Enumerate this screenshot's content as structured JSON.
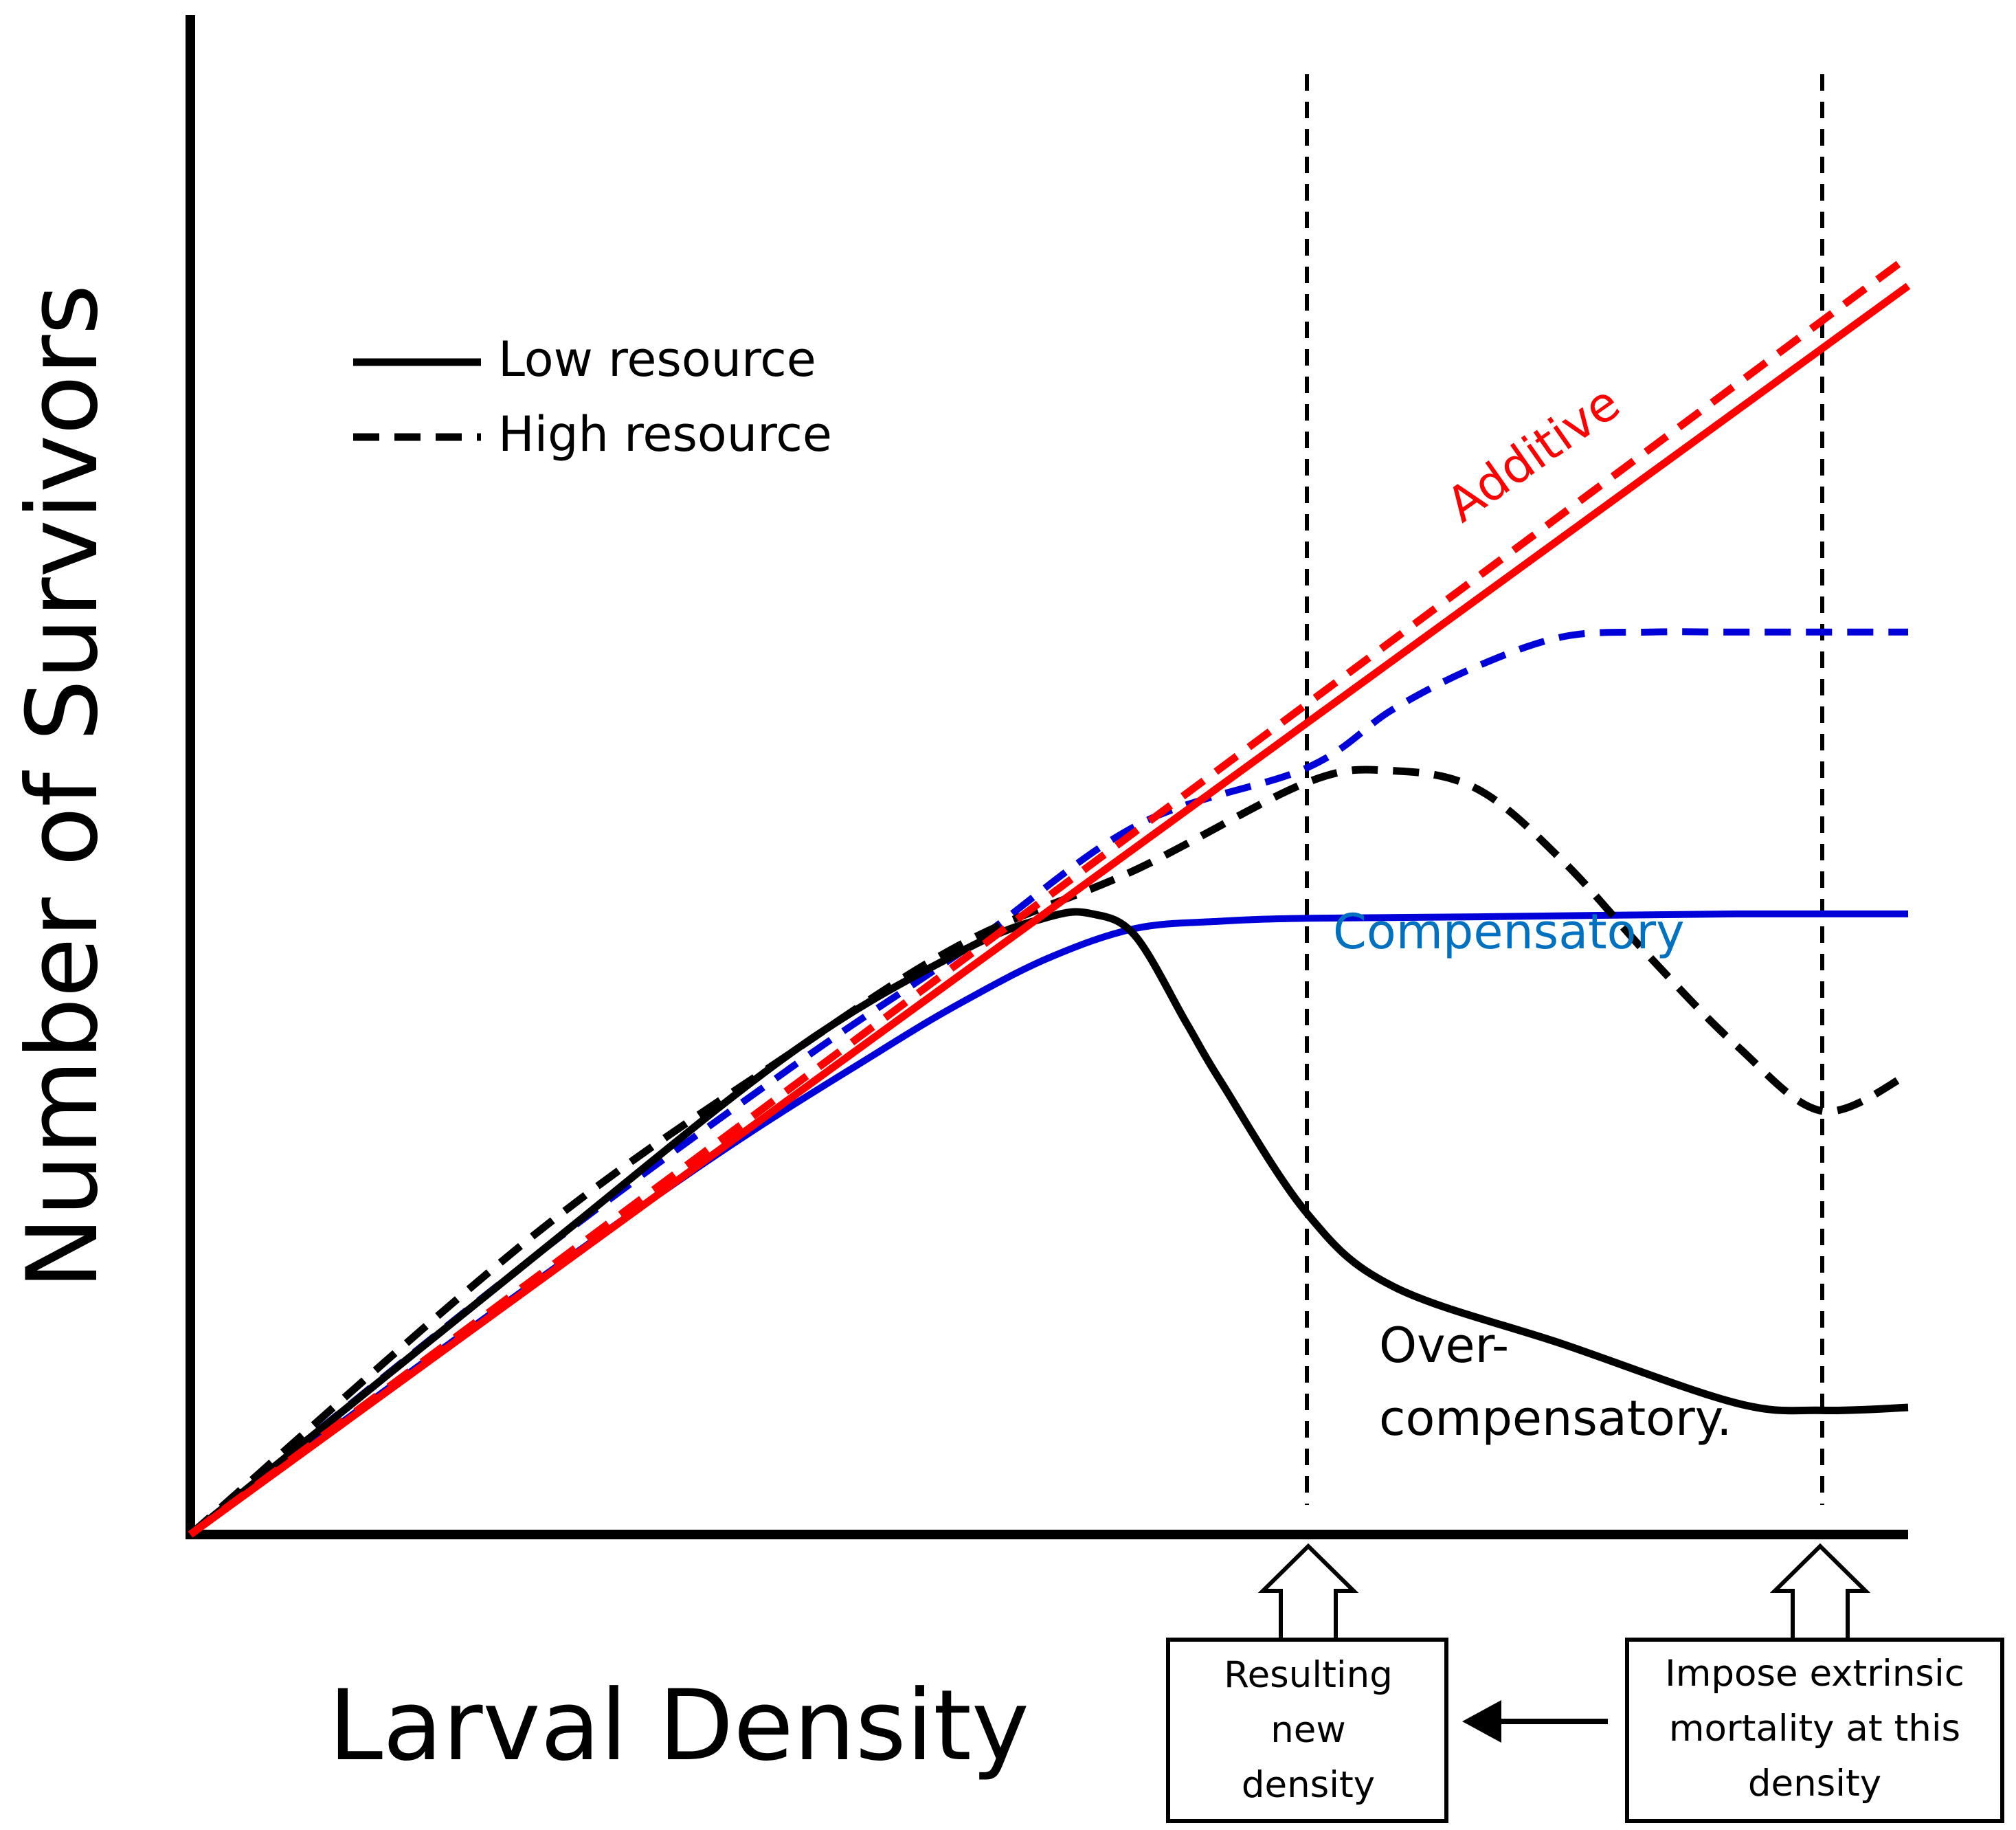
{
  "chart_data": {
    "type": "line",
    "title": "",
    "xlabel": "Larval Density",
    "ylabel": "Number of Survivors",
    "xlim": [
      0,
      100
    ],
    "ylim": [
      0,
      100
    ],
    "ticks": "none",
    "grid": false,
    "legend": {
      "placement": "top-left",
      "entries": [
        {
          "label": "Low resource",
          "style": "solid"
        },
        {
          "label": "High resource",
          "style": "dashed"
        }
      ]
    },
    "colors": {
      "additive": "#ff0000",
      "compensatory_line": "#0000d8",
      "compensatory_text": "#0070c0",
      "overcompensatory": "#000000",
      "reference": "#000000"
    },
    "series": [
      {
        "name": "Additive (Low resource)",
        "key": "additive_low",
        "color": "#ff0000",
        "style": "solid",
        "x": [
          0,
          100
        ],
        "y": [
          0,
          85.5
        ]
      },
      {
        "name": "Additive (High resource)",
        "key": "additive_high",
        "color": "#ff0000",
        "style": "dashed",
        "x": [
          0,
          100
        ],
        "y": [
          0,
          87.5
        ]
      },
      {
        "name": "Compensatory (Low resource)",
        "key": "comp_low",
        "color": "#0000d8",
        "style": "solid",
        "x": [
          0,
          15,
          30,
          40,
          45,
          50,
          55,
          60,
          65,
          75,
          90,
          100
        ],
        "y": [
          0,
          13,
          25.5,
          33,
          36.5,
          39.5,
          41.5,
          42,
          42.2,
          42.3,
          42.5,
          42.5
        ]
      },
      {
        "name": "Compensatory (High resource)",
        "key": "comp_high",
        "color": "#0000d8",
        "style": "dashed",
        "x": [
          0,
          20,
          35,
          45,
          55,
          65,
          70,
          75,
          80,
          85,
          90,
          100
        ],
        "y": [
          0,
          19,
          32,
          40,
          48.5,
          52.5,
          56.5,
          59.5,
          61.5,
          61.8,
          61.8,
          61.8
        ]
      },
      {
        "name": "Over-compensatory (Low resource)",
        "key": "over_low",
        "color": "#000000",
        "style": "solid",
        "x": [
          0,
          20,
          35,
          45,
          50,
          52.5,
          55,
          58,
          60,
          65,
          70,
          80,
          90,
          95,
          100
        ],
        "y": [
          0,
          19,
          33,
          40,
          42.3,
          42.5,
          41,
          35,
          31,
          22,
          17,
          13,
          9,
          8.5,
          8.7
        ]
      },
      {
        "name": "Over-compensatory (High resource)",
        "key": "over_high",
        "color": "#000000",
        "style": "dashed",
        "x": [
          0,
          20,
          35,
          45,
          55,
          65,
          70,
          75,
          80,
          85,
          90,
          95,
          100
        ],
        "y": [
          0,
          20.5,
          33,
          40.5,
          45.5,
          51.5,
          52.3,
          51,
          46,
          39.5,
          33.5,
          29,
          31.5
        ]
      }
    ],
    "reference_lines": [
      {
        "axis": "x",
        "value": 65,
        "style": "dashed"
      },
      {
        "axis": "x",
        "value": 95,
        "style": "dashed"
      }
    ],
    "annotations": {
      "additive": "Additive",
      "compensatory": "Compensatory",
      "over_line1": "Over-",
      "over_line2": "compensatory.",
      "new_density": [
        "Resulting",
        "new",
        "density"
      ],
      "impose": [
        "Impose extrinsic",
        "mortality at this",
        "density"
      ]
    }
  }
}
